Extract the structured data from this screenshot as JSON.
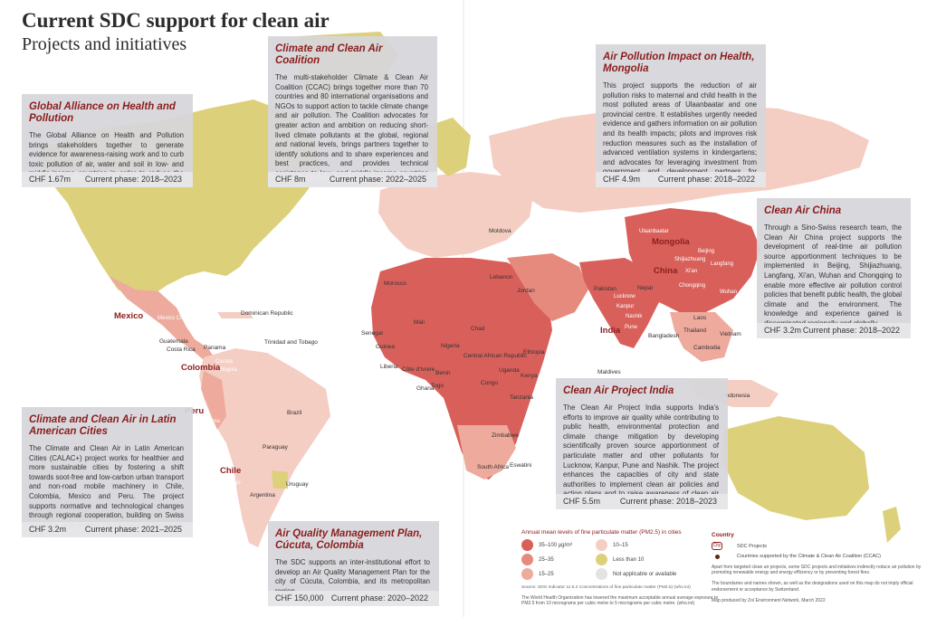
{
  "title": "Current SDC support for clean air",
  "subtitle": "Projects and initiatives",
  "colors": {
    "ocean": "#ffffff",
    "level_35_100": "#d9605a",
    "level_25_35": "#e68a7e",
    "level_15_25": "#eeaa9d",
    "level_10_15": "#f4cdc3",
    "level_lt10": "#ddd07a",
    "not_applicable": "#e3e3e3",
    "accent": "#8c1d1d"
  },
  "cards": [
    {
      "id": "gahp",
      "title": "Global Alliance on Health and Pollution",
      "body": "The Global Alliance on Health and Pollution brings stakeholders together to generate evidence for awareness-raising work and to curb toxic pollution of air, water and soil in low- and middle-income countries in order to reduce the harmful effects on public health.",
      "amount": "CHF 1.67m",
      "phase": "Current phase: 2018–2023"
    },
    {
      "id": "ccac",
      "title": "Climate and Clean Air Coalition",
      "body": "The multi-stakeholder Climate & Clean Air Coalition (CCAC) brings together more than 70 countries and 80 international organisations and NGOs to support action to tackle climate change and air pollution. The Coalition advocates for greater action and ambition on reducing short-lived climate pollutants at the global, regional and national levels, brings partners together to identify solutions and to share experiences and best practices, and provides technical assistance to low- and middle-income countries in Africa, Asia and Latin America.",
      "amount": "CHF 8m",
      "phase": "Current phase: 2022–2025"
    },
    {
      "id": "mongolia",
      "title": "Air Pollution Impact on Health, Mongolia",
      "body": "This project supports the reduction of air pollution risks to maternal and child health in the most polluted areas of Ulaanbaatar and one provincial centre. It establishes urgently needed evidence and gathers information on air pollution and its health impacts; pilots and improves risk reduction measures such as the installation of advanced ventilation systems in kindergartens; and advocates for leveraging investment from government and development partners for scaling up.",
      "amount": "CHF 4.9m",
      "phase": "Current phase: 2018–2022"
    },
    {
      "id": "china",
      "title": "Clean Air China",
      "body": "Through a Sino-Swiss research team, the Clean Air China project supports the development of real-time air pollution source apportionment techniques to be implemented in Beijing, Shijiazhuang, Langfang, Xi'an, Wuhan and Chongqing to enable more effective air pollution control policies that benefit public health, the global climate and the environment. The knowledge and experience gained is disseminated regionally and globally.",
      "amount": "CHF 3.2m",
      "phase": "Current phase: 2018–2022"
    },
    {
      "id": "calac",
      "title": "Climate and Clean Air in Latin American Cities",
      "body": "The Climate and Clean Air in Latin American Cities (CALAC+) project works for healthier and more sustainable cities by fostering a shift towards soot-free and low-carbon urban transport and non-road mobile machinery in Chile, Colombia, Mexico and Peru. The project supports normative and technological changes through regional cooperation, building on Swiss expertise, and sharing experiences at the global level.",
      "amount": "CHF 3.2m",
      "phase": "Current phase: 2021–2025"
    },
    {
      "id": "india",
      "title": "Clean Air Project India",
      "body": "The Clean Air Project India supports India's efforts to improve air quality while contributing to public health, environmental protection and climate change mitigation by developing scientifically proven source apportionment of particulate matter and other pollutants for Lucknow, Kanpur, Pune and Nashik. The project enhances the capacities of city and state authorities to implement clean air policies and action plans and to raise awareness of clean air action.",
      "amount": "CHF 5.5m",
      "phase": "Current phase: 2018–2023"
    },
    {
      "id": "cucuta",
      "title": "Air Quality Management Plan, Cúcuta, Colombia",
      "body": "The SDC supports an inter-institutional effort to develop an Air Quality Management Plan for the city of Cúcuta, Colombia, and its metropolitan region.",
      "amount": "CHF 150,000",
      "phase": "Current phase: 2020–2022"
    }
  ],
  "sdc_countries": [
    "Mexico",
    "Colombia",
    "Peru",
    "Chile",
    "Mongolia",
    "China",
    "India"
  ],
  "ccac_countries": [
    "Dominican Republic",
    "Trinidad and Tobago",
    "Panama",
    "Costa Rica",
    "Guatemala",
    "Brazil",
    "Paraguay",
    "Uruguay",
    "Argentina",
    "Moldova",
    "Morocco",
    "Lebanon",
    "Jordan",
    "Mali",
    "Senegal",
    "Guinea",
    "Liberia",
    "Côte d'Ivoire",
    "Ghana",
    "Togo",
    "Benin",
    "Nigeria",
    "Chad",
    "Central African Republic",
    "Ethiopia",
    "Uganda",
    "Kenya",
    "Congo",
    "Tanzania",
    "Zimbabwe",
    "South Africa",
    "Eswatini",
    "Maldives",
    "Pakistan",
    "Nepal",
    "Bangladesh",
    "Laos",
    "Thailand",
    "Cambodia",
    "Vietnam",
    "Indonesia"
  ],
  "cities": [
    "Mexico City",
    "Cucuta",
    "Bogota",
    "Lima",
    "Santiago",
    "Ulaanbaatar",
    "Beijing",
    "Shijiazhuang",
    "Langfang",
    "Xi'an",
    "Chongqing",
    "Wuhan",
    "Lucknow",
    "Kanpur",
    "Nashik",
    "Pune"
  ],
  "legend": {
    "title": "Annual mean levels of fine particulate matter (PM2.5) in cities",
    "items": [
      {
        "label": "35–100 μg/m³",
        "color": "#d9605a"
      },
      {
        "label": "10–15",
        "color": "#f4cdc3"
      },
      {
        "label": "25–35",
        "color": "#e68a7e"
      },
      {
        "label": "Less than 10",
        "color": "#ddd07a"
      },
      {
        "label": "15–25",
        "color": "#eeaa9d"
      },
      {
        "label": "Not applicable or available",
        "color": "#e3e3e3"
      }
    ],
    "source": "Source: SDG Indicator 11.6.2 Concentrations of fine particulate matter (PM2.5) (who.int)",
    "note": "The World Health Organization has lowered the maximum acceptable annual average exposure to PM2.5 from 10 micrograms per cubic metre to 5 micrograms per cubic metre. (who.int)"
  },
  "legend2": {
    "country_label": "Country",
    "city_label": "City",
    "sdc_projects": "SDC Projects",
    "ccac_supported": "Countries supported by the Climate & Clean Air Coalition (CCAC)",
    "note1": "Apart from targeted clean air projects, some SDC projects and initiatives indirectly reduce air pollution by promoting renewable energy and energy efficiency or by preventing forest fires.",
    "note2": "The boundaries and names shown, as well as the designations used on this map do not imply official endorsement or acceptance by Switzerland.",
    "credit": "Map produced by Zoï Environment Network, March 2022"
  }
}
